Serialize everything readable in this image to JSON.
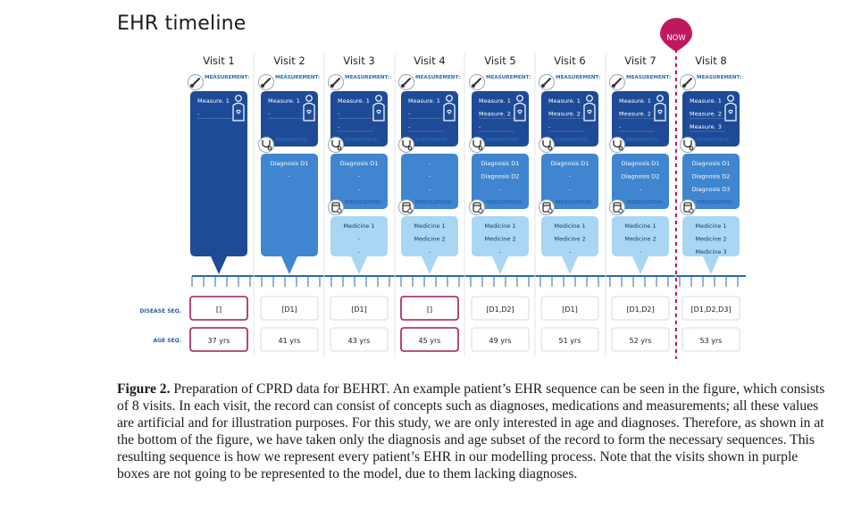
{
  "title": "EHR timeline",
  "now_label": "NOW",
  "labels": {
    "measurement": "MEASUREMENT:",
    "diagnosis": "DIAGNOSIS:",
    "medication": "MEDICATION:",
    "disease_seq": "DISEASE SEQ.",
    "age_seq": "AGE SEQ."
  },
  "colors": {
    "measurement": "#1e4b98",
    "diagnosis": "#3f85cf",
    "medication": "#a9d6f3",
    "axis": "#2a68b4",
    "highlight": "#a3195b",
    "now": "#c0185e"
  },
  "visits": [
    {
      "label": "Visit 1",
      "measurements": [
        "Measure. 1",
        "-"
      ],
      "diagnoses": [],
      "medicines": [],
      "disease": "[]",
      "age": "37 yrs",
      "highlight": true
    },
    {
      "label": "Visit 2",
      "measurements": [
        "Measure. 1",
        "-"
      ],
      "diagnoses": [
        "Diagnosis D1",
        "-"
      ],
      "medicines": [],
      "disease": "[D1]",
      "age": "41 yrs",
      "highlight": false
    },
    {
      "label": "Visit 3",
      "measurements": [
        "Measure. 1",
        "-",
        "-"
      ],
      "diagnoses": [
        "Diagnosis D1",
        "-",
        "-"
      ],
      "medicines": [
        "Medicine 1",
        "-",
        "-"
      ],
      "disease": "[D1]",
      "age": "43 yrs",
      "highlight": false
    },
    {
      "label": "Visit 4",
      "measurements": [
        "Measure. 1",
        "-",
        "-"
      ],
      "diagnoses": [
        "-",
        "-",
        "-"
      ],
      "medicines": [
        "Medicine 1",
        "Medicine 2",
        "-"
      ],
      "disease": "[]",
      "age": "45 yrs",
      "highlight": true
    },
    {
      "label": "Visit 5",
      "measurements": [
        "Measure. 1",
        "Measure. 2",
        "-"
      ],
      "diagnoses": [
        "Diagnosis D1",
        "Diagnosis D2",
        "-"
      ],
      "medicines": [
        "Medicine 1",
        "Medicine 2",
        "-"
      ],
      "disease": "[D1,D2]",
      "age": "49 yrs",
      "highlight": false
    },
    {
      "label": "Visit 6",
      "measurements": [
        "Measure. 1",
        "Measure. 2",
        "-"
      ],
      "diagnoses": [
        "Diagnosis D1",
        "-",
        "-"
      ],
      "medicines": [
        "Medicine 1",
        "Medicine 2",
        "-"
      ],
      "disease": "[D1]",
      "age": "51 yrs",
      "highlight": false
    },
    {
      "label": "Visit 7",
      "measurements": [
        "Measure. 1",
        "Measure. 2",
        "-"
      ],
      "diagnoses": [
        "Diagnosis D1",
        "Diagnosis D2",
        "-"
      ],
      "medicines": [
        "Medicine 1",
        "Medicine 2",
        "-"
      ],
      "disease": "[D1,D2]",
      "age": "52 yrs",
      "highlight": false
    },
    {
      "label": "Visit 8",
      "measurements": [
        "Measure. 1",
        "Measure. 2",
        "Measure. 3"
      ],
      "diagnoses": [
        "Diagnosis D1",
        "Diagnosis D2",
        "Diagnosis D3"
      ],
      "medicines": [
        "Medicine 1",
        "Medicine 2",
        "Medicine 3"
      ],
      "disease": "[D1,D2,D3]",
      "age": "53 yrs",
      "highlight": false
    }
  ],
  "caption": {
    "figure_label": "Figure 2.",
    "text": "Preparation of CPRD data for BEHRT. An example patient’s EHR sequence can be seen in the figure, which consists of 8 visits. In each visit, the record can consist of concepts such as diagnoses, medications and measurements; all these values are artificial and for illustration purposes. For this study, we are only interested in age and diagnoses. Therefore, as shown in at the bottom of the figure, we have taken only the diagnosis and age subset of the record to form the necessary sequences. This resulting sequence is how we represent every patient’s EHR in our modelling process. Note that the visits shown in purple boxes are not going to be represented to the model, due to them lacking diagnoses."
  }
}
